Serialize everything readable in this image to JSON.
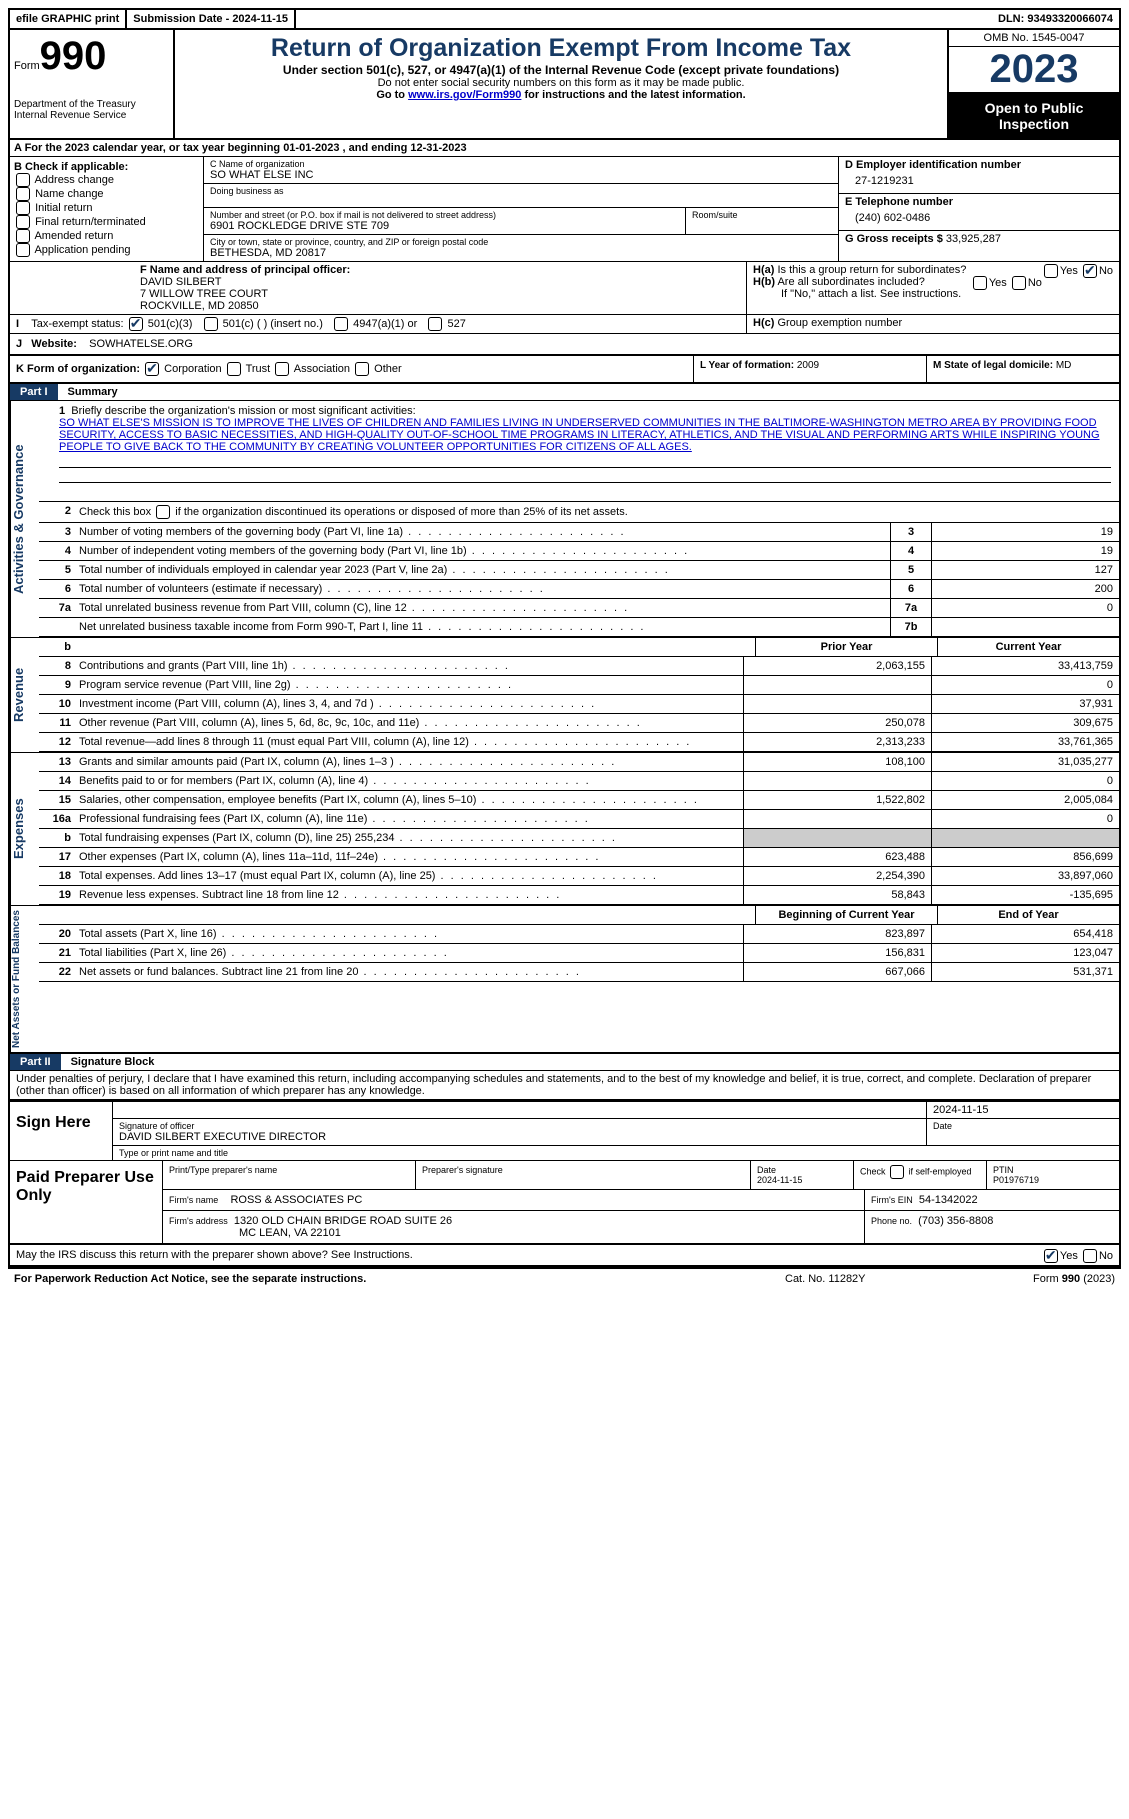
{
  "topbar": {
    "efile": "efile GRAPHIC print",
    "submission": "Submission Date - 2024-11-15",
    "dln": "DLN: 93493320066074"
  },
  "header": {
    "form_prefix": "Form",
    "form_number": "990",
    "dept": "Department of the Treasury Internal Revenue Service",
    "title": "Return of Organization Exempt From Income Tax",
    "subtitle": "Under section 501(c), 527, or 4947(a)(1) of the Internal Revenue Code (except private foundations)",
    "note1": "Do not enter social security numbers on this form as it may be made public.",
    "note2_pre": "Go to ",
    "note2_link": "www.irs.gov/Form990",
    "note2_post": " for instructions and the latest information.",
    "omb": "OMB No. 1545-0047",
    "year": "2023",
    "open": "Open to Public Inspection"
  },
  "row_a": "A For the 2023 calendar year, or tax year beginning 01-01-2023 , and ending 12-31-2023",
  "box_b": {
    "title": "B Check if applicable:",
    "items": [
      "Address change",
      "Name change",
      "Initial return",
      "Final return/terminated",
      "Amended return",
      "Application pending"
    ]
  },
  "box_c": {
    "name_label": "C Name of organization",
    "name": "SO WHAT ELSE INC",
    "dba_label": "Doing business as",
    "dba": "",
    "street_label": "Number and street (or P.O. box if mail is not delivered to street address)",
    "street": "6901 ROCKLEDGE DRIVE STE 709",
    "room_label": "Room/suite",
    "room": "",
    "city_label": "City or town, state or province, country, and ZIP or foreign postal code",
    "city": "BETHESDA, MD  20817"
  },
  "box_d": {
    "label": "D Employer identification number",
    "value": "27-1219231"
  },
  "box_e": {
    "label": "E Telephone number",
    "value": "(240) 602-0486"
  },
  "box_g": {
    "label": "G Gross receipts $",
    "value": "33,925,287"
  },
  "box_f": {
    "label": "F Name and address of principal officer:",
    "name": "DAVID SILBERT",
    "street": "7 WILLOW TREE COURT",
    "city": "ROCKVILLE, MD  20850"
  },
  "box_h": {
    "ha": "Is this a group return for subordinates?",
    "hb": "Are all subordinates included?",
    "hb_note": "If \"No,\" attach a list. See instructions.",
    "hc": "Group exemption number"
  },
  "box_i": {
    "label": "Tax-exempt status:",
    "opts": [
      "501(c)(3)",
      "501(c) (  ) (insert no.)",
      "4947(a)(1) or",
      "527"
    ]
  },
  "box_j": {
    "label": "Website:",
    "value": "SOWHATELSE.ORG"
  },
  "box_k": {
    "label": "K Form of organization:",
    "opts": [
      "Corporation",
      "Trust",
      "Association",
      "Other"
    ]
  },
  "box_l": {
    "label": "L Year of formation:",
    "value": "2009"
  },
  "box_m": {
    "label": "M State of legal domicile:",
    "value": "MD"
  },
  "part1": {
    "header": "Part I",
    "title": "Summary",
    "section_ag": "Activities & Governance",
    "section_rev": "Revenue",
    "section_exp": "Expenses",
    "section_na": "Net Assets or Fund Balances",
    "mission_label": "Briefly describe the organization's mission or most significant activities:",
    "mission": "SO WHAT ELSE'S MISSION IS TO IMPROVE THE LIVES OF CHILDREN AND FAMILIES LIVING IN UNDERSERVED COMMUNITIES IN THE BALTIMORE-WASHINGTON METRO AREA BY PROVIDING FOOD SECURITY, ACCESS TO BASIC NECESSITIES, AND HIGH-QUALITY OUT-OF-SCHOOL TIME PROGRAMS IN LITERACY, ATHLETICS, AND THE VISUAL AND PERFORMING ARTS WHILE INSPIRING YOUNG PEOPLE TO GIVE BACK TO THE COMMUNITY BY CREATING VOLUNTEER OPPORTUNITIES FOR CITIZENS OF ALL AGES.",
    "line2": "Check this box       if the organization discontinued its operations or disposed of more than 25% of its net assets.",
    "lines_37": [
      {
        "n": "3",
        "label": "Number of voting members of the governing body (Part VI, line 1a)",
        "box": "3",
        "val": "19"
      },
      {
        "n": "4",
        "label": "Number of independent voting members of the governing body (Part VI, line 1b)",
        "box": "4",
        "val": "19"
      },
      {
        "n": "5",
        "label": "Total number of individuals employed in calendar year 2023 (Part V, line 2a)",
        "box": "5",
        "val": "127"
      },
      {
        "n": "6",
        "label": "Total number of volunteers (estimate if necessary)",
        "box": "6",
        "val": "200"
      },
      {
        "n": "7a",
        "label": "Total unrelated business revenue from Part VIII, column (C), line 12",
        "box": "7a",
        "val": "0"
      },
      {
        "n": "",
        "label": "Net unrelated business taxable income from Form 990-T, Part I, line 11",
        "box": "7b",
        "val": ""
      }
    ],
    "year_cols": {
      "prior": "Prior Year",
      "current": "Current Year"
    },
    "rev_lines": [
      {
        "n": "8",
        "label": "Contributions and grants (Part VIII, line 1h)",
        "prior": "2,063,155",
        "cur": "33,413,759"
      },
      {
        "n": "9",
        "label": "Program service revenue (Part VIII, line 2g)",
        "prior": "",
        "cur": "0"
      },
      {
        "n": "10",
        "label": "Investment income (Part VIII, column (A), lines 3, 4, and 7d )",
        "prior": "",
        "cur": "37,931"
      },
      {
        "n": "11",
        "label": "Other revenue (Part VIII, column (A), lines 5, 6d, 8c, 9c, 10c, and 11e)",
        "prior": "250,078",
        "cur": "309,675"
      },
      {
        "n": "12",
        "label": "Total revenue—add lines 8 through 11 (must equal Part VIII, column (A), line 12)",
        "prior": "2,313,233",
        "cur": "33,761,365"
      }
    ],
    "exp_lines": [
      {
        "n": "13",
        "label": "Grants and similar amounts paid (Part IX, column (A), lines 1–3 )",
        "prior": "108,100",
        "cur": "31,035,277"
      },
      {
        "n": "14",
        "label": "Benefits paid to or for members (Part IX, column (A), line 4)",
        "prior": "",
        "cur": "0"
      },
      {
        "n": "15",
        "label": "Salaries, other compensation, employee benefits (Part IX, column (A), lines 5–10)",
        "prior": "1,522,802",
        "cur": "2,005,084"
      },
      {
        "n": "16a",
        "label": "Professional fundraising fees (Part IX, column (A), line 11e)",
        "prior": "",
        "cur": "0"
      },
      {
        "n": "b",
        "label": "Total fundraising expenses (Part IX, column (D), line 25) 255,234",
        "prior": "GREY",
        "cur": "GREY"
      },
      {
        "n": "17",
        "label": "Other expenses (Part IX, column (A), lines 11a–11d, 11f–24e)",
        "prior": "623,488",
        "cur": "856,699"
      },
      {
        "n": "18",
        "label": "Total expenses. Add lines 13–17 (must equal Part IX, column (A), line 25)",
        "prior": "2,254,390",
        "cur": "33,897,060"
      },
      {
        "n": "19",
        "label": "Revenue less expenses. Subtract line 18 from line 12",
        "prior": "58,843",
        "cur": "-135,695"
      }
    ],
    "na_cols": {
      "beg": "Beginning of Current Year",
      "end": "End of Year"
    },
    "na_lines": [
      {
        "n": "20",
        "label": "Total assets (Part X, line 16)",
        "prior": "823,897",
        "cur": "654,418"
      },
      {
        "n": "21",
        "label": "Total liabilities (Part X, line 26)",
        "prior": "156,831",
        "cur": "123,047"
      },
      {
        "n": "22",
        "label": "Net assets or fund balances. Subtract line 21 from line 20",
        "prior": "667,066",
        "cur": "531,371"
      }
    ]
  },
  "part2": {
    "header": "Part II",
    "title": "Signature Block",
    "perjury": "Under penalties of perjury, I declare that I have examined this return, including accompanying schedules and statements, and to the best of my knowledge and belief, it is true, correct, and complete. Declaration of preparer (other than officer) is based on all information of which preparer has any knowledge."
  },
  "sign": {
    "label": "Sign Here",
    "date": "2024-11-15",
    "sig_label": "Signature of officer",
    "officer": "DAVID SILBERT  EXECUTIVE DIRECTOR",
    "type_label": "Type or print name and title",
    "date_label": "Date"
  },
  "preparer": {
    "label": "Paid Preparer Use Only",
    "cols": {
      "name": "Print/Type preparer's name",
      "sig": "Preparer's signature",
      "date": "Date",
      "date_val": "2024-11-15",
      "check": "Check        if self-employed",
      "ptin": "PTIN",
      "ptin_val": "P01976719"
    },
    "firm_name_label": "Firm's name",
    "firm_name": "ROSS & ASSOCIATES PC",
    "firm_ein_label": "Firm's EIN",
    "firm_ein": "54-1342022",
    "firm_addr_label": "Firm's address",
    "firm_addr1": "1320 OLD CHAIN BRIDGE ROAD SUITE 26",
    "firm_addr2": "MC LEAN, VA  22101",
    "phone_label": "Phone no.",
    "phone": "(703) 356-8808"
  },
  "discuss": "May the IRS discuss this return with the preparer shown above? See Instructions.",
  "footer": {
    "left": "For Paperwork Reduction Act Notice, see the separate instructions.",
    "mid": "Cat. No. 11282Y",
    "right": "Form 990 (2023)"
  }
}
